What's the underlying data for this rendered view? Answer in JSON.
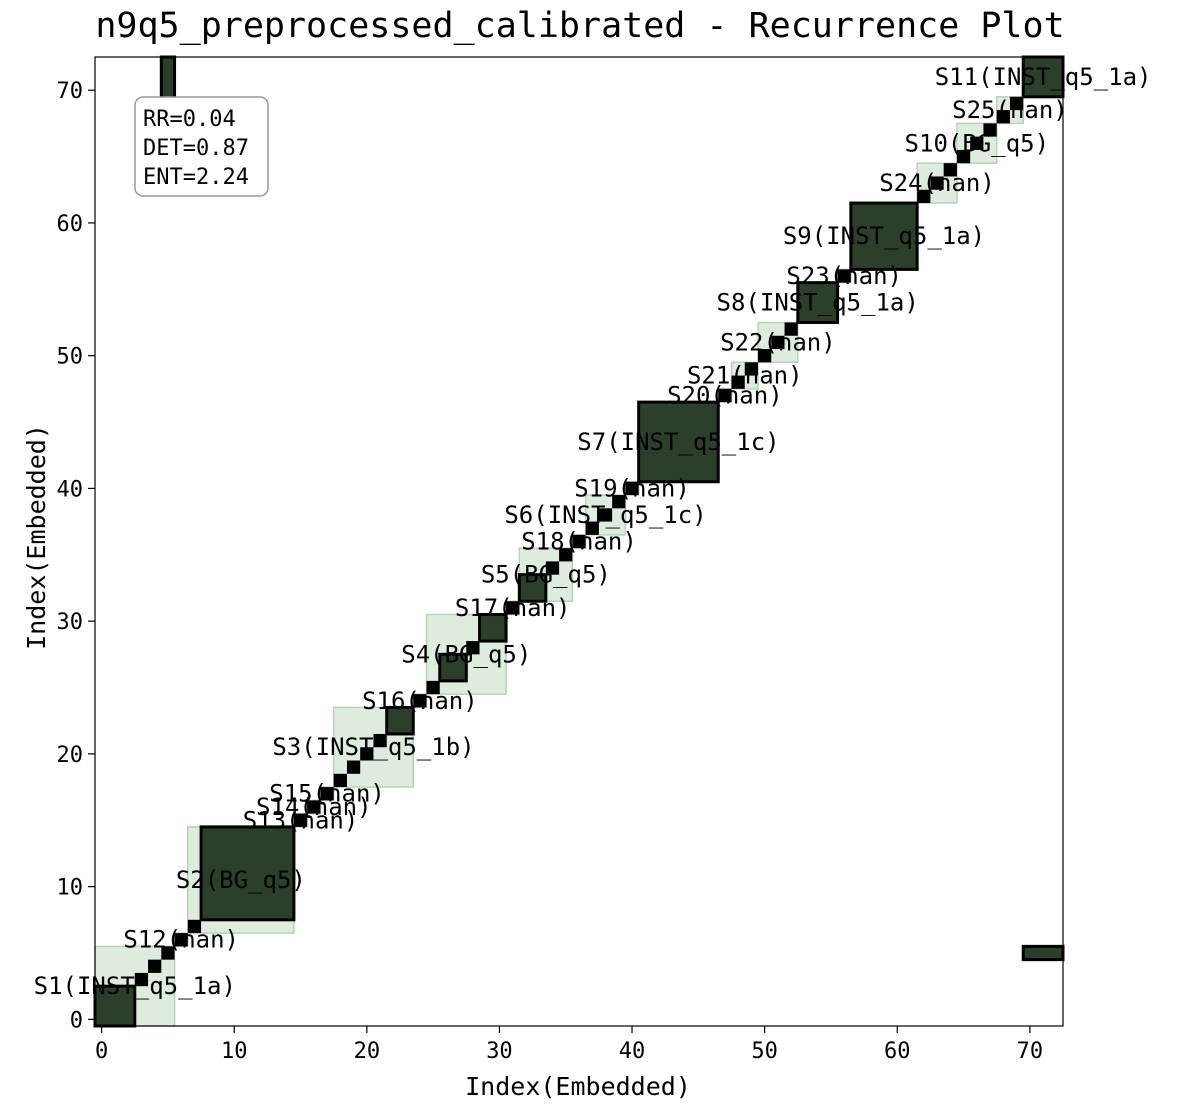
{
  "chart_data": {
    "type": "heatmap",
    "title": "n9q5_preprocessed_calibrated - Recurrence Plot",
    "xlabel": "Index(Embedded)",
    "ylabel": "Index(Embedded)",
    "xlim": [
      -0.5,
      72.5
    ],
    "ylim": [
      -0.5,
      72.5
    ],
    "xticks": [
      0,
      10,
      20,
      30,
      40,
      50,
      60,
      70
    ],
    "yticks": [
      0,
      10,
      20,
      30,
      40,
      50,
      60,
      70
    ],
    "grid": false,
    "colors": {
      "recurrence": "#000000",
      "block": "#2b3f2b",
      "segment_fill": "#d3e5d3",
      "segment_edge": "#b6d4b6"
    },
    "metrics": {
      "rr": "RR=0.04",
      "det": "DET=0.87",
      "ent": "ENT=2.24"
    },
    "segments": [
      {
        "label": "S1(INST_q5_1a)",
        "start": 0,
        "end": 6
      },
      {
        "label": "S12(nan)",
        "start": 6,
        "end": 7
      },
      {
        "label": "S2(BG_q5)",
        "start": 7,
        "end": 15
      },
      {
        "label": "S13(nan)",
        "start": 15,
        "end": 16
      },
      {
        "label": "S14(nan)",
        "start": 16,
        "end": 17
      },
      {
        "label": "S15(nan)",
        "start": 17,
        "end": 18
      },
      {
        "label": "S3(INST_q5_1b)",
        "start": 18,
        "end": 24
      },
      {
        "label": "S16(nan)",
        "start": 24,
        "end": 25
      },
      {
        "label": "S4(BG_q5)",
        "start": 25,
        "end": 31
      },
      {
        "label": "S17(nan)",
        "start": 31,
        "end": 32
      },
      {
        "label": "S5(BG_q5)",
        "start": 32,
        "end": 36
      },
      {
        "label": "S18(nan)",
        "start": 36,
        "end": 37
      },
      {
        "label": "S6(INST_q5_1c)",
        "start": 37,
        "end": 40
      },
      {
        "label": "S19(nan)",
        "start": 40,
        "end": 41
      },
      {
        "label": "S7(INST_q5_1c)",
        "start": 41,
        "end": 47
      },
      {
        "label": "S20(nan)",
        "start": 47,
        "end": 48
      },
      {
        "label": "S21(nan)",
        "start": 48,
        "end": 50
      },
      {
        "label": "S22(nan)",
        "start": 50,
        "end": 53
      },
      {
        "label": "S8(INST_q5_1a)",
        "start": 53,
        "end": 56
      },
      {
        "label": "S23(nan)",
        "start": 56,
        "end": 57
      },
      {
        "label": "S9(INST_q5_1a)",
        "start": 57,
        "end": 62
      },
      {
        "label": "S24(nan)",
        "start": 62,
        "end": 65
      },
      {
        "label": "S10(BG_q5)",
        "start": 65,
        "end": 68
      },
      {
        "label": "S25(nan)",
        "start": 68,
        "end": 70
      },
      {
        "label": "S11(INST_q5_1a)",
        "start": 70,
        "end": 73
      }
    ],
    "recurrence_blocks": [
      {
        "x": [
          0,
          2
        ],
        "y": [
          0,
          2
        ]
      },
      {
        "x": [
          3,
          3
        ],
        "y": [
          3,
          3
        ]
      },
      {
        "x": [
          4,
          4
        ],
        "y": [
          4,
          4
        ]
      },
      {
        "x": [
          5,
          5
        ],
        "y": [
          5,
          5
        ]
      },
      {
        "x": [
          6,
          6
        ],
        "y": [
          6,
          6
        ]
      },
      {
        "x": [
          7,
          7
        ],
        "y": [
          7,
          7
        ]
      },
      {
        "x": [
          8,
          14
        ],
        "y": [
          8,
          14
        ]
      },
      {
        "x": [
          15,
          15
        ],
        "y": [
          15,
          15
        ]
      },
      {
        "x": [
          16,
          16
        ],
        "y": [
          16,
          16
        ]
      },
      {
        "x": [
          17,
          17
        ],
        "y": [
          17,
          17
        ]
      },
      {
        "x": [
          18,
          18
        ],
        "y": [
          18,
          18
        ]
      },
      {
        "x": [
          19,
          19
        ],
        "y": [
          19,
          19
        ]
      },
      {
        "x": [
          20,
          20
        ],
        "y": [
          20,
          20
        ]
      },
      {
        "x": [
          21,
          21
        ],
        "y": [
          21,
          21
        ]
      },
      {
        "x": [
          22,
          23
        ],
        "y": [
          22,
          23
        ]
      },
      {
        "x": [
          24,
          24
        ],
        "y": [
          24,
          24
        ]
      },
      {
        "x": [
          25,
          25
        ],
        "y": [
          25,
          25
        ]
      },
      {
        "x": [
          26,
          27
        ],
        "y": [
          26,
          27
        ]
      },
      {
        "x": [
          28,
          28
        ],
        "y": [
          28,
          28
        ]
      },
      {
        "x": [
          29,
          30
        ],
        "y": [
          29,
          30
        ]
      },
      {
        "x": [
          31,
          31
        ],
        "y": [
          31,
          31
        ]
      },
      {
        "x": [
          32,
          33
        ],
        "y": [
          32,
          33
        ]
      },
      {
        "x": [
          34,
          34
        ],
        "y": [
          34,
          34
        ]
      },
      {
        "x": [
          35,
          35
        ],
        "y": [
          35,
          35
        ]
      },
      {
        "x": [
          36,
          36
        ],
        "y": [
          36,
          36
        ]
      },
      {
        "x": [
          37,
          37
        ],
        "y": [
          37,
          37
        ]
      },
      {
        "x": [
          38,
          38
        ],
        "y": [
          38,
          38
        ]
      },
      {
        "x": [
          39,
          39
        ],
        "y": [
          39,
          39
        ]
      },
      {
        "x": [
          40,
          40
        ],
        "y": [
          40,
          40
        ]
      },
      {
        "x": [
          41,
          46
        ],
        "y": [
          41,
          46
        ]
      },
      {
        "x": [
          47,
          47
        ],
        "y": [
          47,
          47
        ]
      },
      {
        "x": [
          48,
          48
        ],
        "y": [
          48,
          48
        ]
      },
      {
        "x": [
          49,
          49
        ],
        "y": [
          49,
          49
        ]
      },
      {
        "x": [
          50,
          50
        ],
        "y": [
          50,
          50
        ]
      },
      {
        "x": [
          51,
          51
        ],
        "y": [
          51,
          51
        ]
      },
      {
        "x": [
          52,
          52
        ],
        "y": [
          52,
          52
        ]
      },
      {
        "x": [
          53,
          55
        ],
        "y": [
          53,
          55
        ]
      },
      {
        "x": [
          56,
          56
        ],
        "y": [
          56,
          56
        ]
      },
      {
        "x": [
          57,
          61
        ],
        "y": [
          57,
          61
        ]
      },
      {
        "x": [
          62,
          62
        ],
        "y": [
          62,
          62
        ]
      },
      {
        "x": [
          63,
          63
        ],
        "y": [
          63,
          63
        ]
      },
      {
        "x": [
          64,
          64
        ],
        "y": [
          64,
          64
        ]
      },
      {
        "x": [
          65,
          65
        ],
        "y": [
          65,
          65
        ]
      },
      {
        "x": [
          66,
          66
        ],
        "y": [
          66,
          66
        ]
      },
      {
        "x": [
          67,
          67
        ],
        "y": [
          67,
          67
        ]
      },
      {
        "x": [
          68,
          68
        ],
        "y": [
          68,
          68
        ]
      },
      {
        "x": [
          69,
          69
        ],
        "y": [
          69,
          69
        ]
      },
      {
        "x": [
          70,
          72
        ],
        "y": [
          70,
          72
        ]
      },
      {
        "x": [
          5,
          5
        ],
        "y": [
          68,
          72
        ]
      },
      {
        "x": [
          70,
          72
        ],
        "y": [
          5,
          5
        ]
      }
    ]
  }
}
